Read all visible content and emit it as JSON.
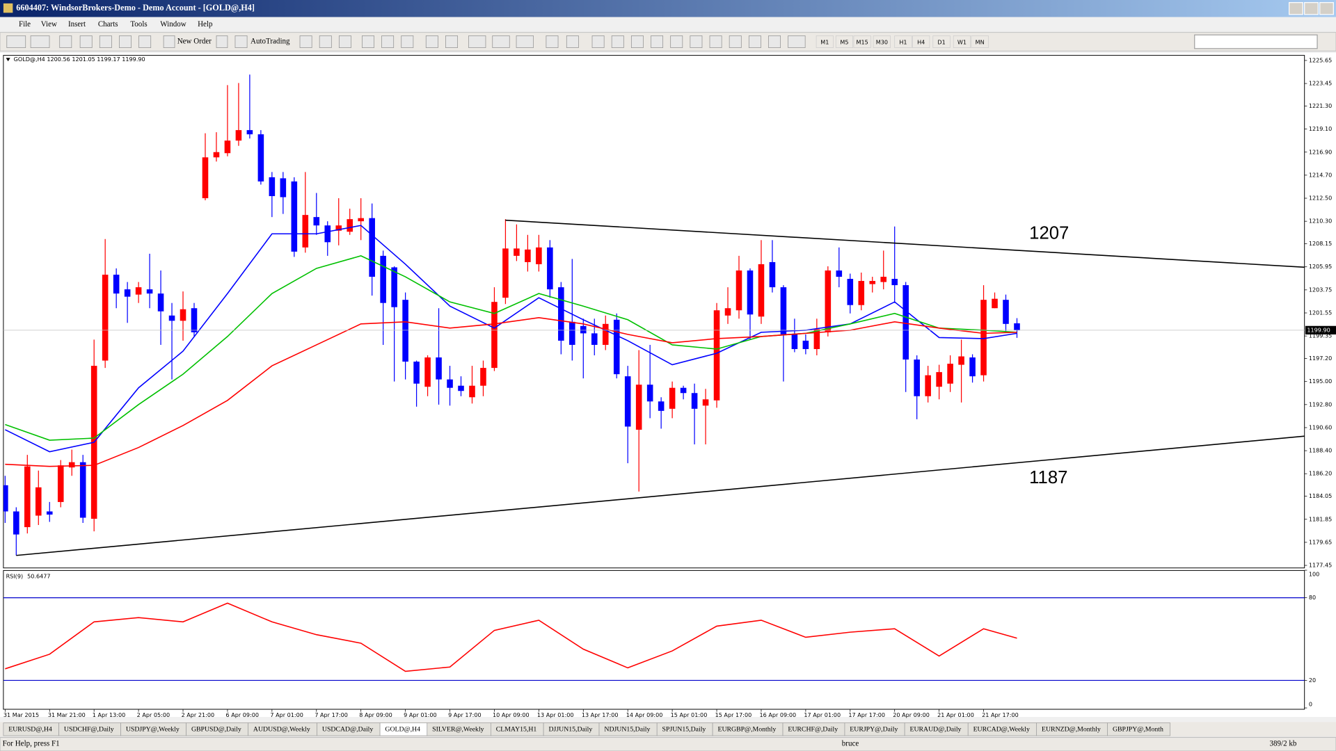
{
  "ui": {
    "title": "6604407: WindsorBrokers-Demo - Demo Account - [GOLD@,H4]",
    "menu": [
      "File",
      "View",
      "Insert",
      "Charts",
      "Tools",
      "Window",
      "Help"
    ],
    "toolbar": {
      "new_order": "New Order",
      "autotrading": "AutoTrading",
      "timeframes": [
        "M1",
        "M5",
        "M15",
        "M30",
        "H1",
        "H4",
        "D1",
        "W1",
        "MN"
      ]
    },
    "tabs": [
      "EURUSD@,H4",
      "USDCHF@,Daily",
      "USDJPY@,Weekly",
      "GBPUSD@,Daily",
      "AUDUSD@,Weekly",
      "USDCAD@,Daily",
      "GOLD@,H4",
      "SILVER@,Weekly",
      "CLMAY15,H1",
      "DJJUN15,Daily",
      "NDJUN15,Daily",
      "SPJUN15,Daily",
      "EURGBP@,Monthly",
      "EURCHF@,Daily",
      "EURJPY@,Daily",
      "EURAUD@,Daily",
      "EURCAD@,Weekly",
      "EURNZD@,Monthly",
      "GBPJPY@,Month"
    ],
    "status": {
      "help": "For Help, press F1",
      "user": "bruce",
      "traffic": "389/2 kb"
    }
  },
  "chart_data": [
    {
      "type": "candlestick",
      "header": "GOLD@,H4 1200.56 1201.05 1199.17 1199.90",
      "up_color": "#ff0000",
      "down_color": "#0000ff",
      "categories": [
        "31 Mar 2015",
        null,
        null,
        null,
        "31 Mar 21:00",
        null,
        null,
        null,
        "1 Apr 13:00",
        null,
        null,
        null,
        "2 Apr 05:00",
        null,
        null,
        null,
        "2 Apr 21:00",
        null,
        null,
        null,
        "6 Apr 09:00",
        null,
        null,
        null,
        "7 Apr 01:00",
        null,
        null,
        null,
        "7 Apr 17:00",
        null,
        null,
        null,
        "8 Apr 09:00",
        null,
        null,
        null,
        "9 Apr 01:00",
        null,
        null,
        null,
        "9 Apr 17:00",
        null,
        null,
        null,
        "10 Apr 09:00",
        null,
        null,
        null,
        "13 Apr 01:00",
        null,
        null,
        null,
        "13 Apr 17:00",
        null,
        null,
        null,
        "14 Apr 09:00",
        null,
        null,
        null,
        "15 Apr 01:00",
        null,
        null,
        null,
        "15 Apr 17:00",
        null,
        null,
        null,
        "16 Apr 09:00",
        null,
        null,
        null,
        "17 Apr 01:00",
        null,
        null,
        null,
        "17 Apr 17:00",
        null,
        null,
        null,
        "20 Apr 09:00",
        null,
        null,
        null,
        "21 Apr 01:00",
        null,
        null,
        null,
        "21 Apr 17:00",
        null,
        null,
        null
      ],
      "open": [
        1185.1,
        1182.6,
        1181.1,
        1182.2,
        1182.6,
        1183.5,
        1186.8,
        1187.3,
        1181.9,
        1197.0,
        1205.2,
        1203.8,
        1203.3,
        1203.8,
        1203.4,
        1201.3,
        1200.8,
        1202.0,
        1212.5,
        1216.4,
        1216.8,
        1218.0,
        1219.0,
        1218.6,
        1214.5,
        1214.4,
        1214.1,
        1207.8,
        1210.7,
        1209.9,
        1209.4,
        1209.3,
        1210.3,
        1210.6,
        1207.0,
        1205.9,
        1202.8,
        1196.9,
        1194.5,
        1197.3,
        1195.2,
        1194.6,
        1193.5,
        1194.6,
        1196.3,
        1203.0,
        1207.0,
        1206.4,
        1206.2,
        1207.8,
        1204.0,
        1200.7,
        1200.3,
        1199.6,
        1198.5,
        1200.9,
        1195.5,
        1190.4,
        1194.7,
        1193.1,
        1192.4,
        1194.4,
        1193.9,
        1192.7,
        1193.2,
        1201.3,
        1201.8,
        1205.6,
        1201.2,
        1206.4,
        1204.0,
        1199.5,
        1198.9,
        1198.1,
        1199.7,
        1205.6,
        1204.8,
        1202.3,
        1204.3,
        1204.5,
        1204.8,
        1204.2,
        1197.1,
        1193.6,
        1194.5,
        1194.8,
        1196.6,
        1197.3,
        1195.6,
        1202.0,
        1202.8,
        1200.56
      ],
      "high": [
        1186.0,
        1183.0,
        1188.0,
        1186.5,
        1183.5,
        1187.5,
        1188.5,
        1188.0,
        1199.0,
        1208.6,
        1205.8,
        1204.5,
        1204.5,
        1207.2,
        1205.6,
        1202.5,
        1203.6,
        1202.5,
        1218.7,
        1218.8,
        1223.3,
        1223.5,
        1224.3,
        1219.0,
        1215.0,
        1215.0,
        1214.5,
        1215.0,
        1213.0,
        1210.3,
        1212.5,
        1211.5,
        1212.5,
        1212.0,
        1207.5,
        1206.0,
        1203.5,
        1197.0,
        1197.5,
        1202.0,
        1196.5,
        1195.5,
        1196.5,
        1197.0,
        1204.0,
        1210.5,
        1210.0,
        1209.0,
        1209.0,
        1208.5,
        1204.5,
        1206.7,
        1201.0,
        1201.0,
        1201.3,
        1201.5,
        1196.5,
        1198.0,
        1198.5,
        1193.5,
        1195.0,
        1194.6,
        1194.8,
        1194.3,
        1202.5,
        1204.0,
        1207.0,
        1205.8,
        1208.5,
        1208.5,
        1204.2,
        1201.0,
        1199.5,
        1201.0,
        1206.0,
        1207.8,
        1205.3,
        1205.4,
        1205.0,
        1207.5,
        1209.8,
        1204.5,
        1197.5,
        1196.5,
        1196.6,
        1197.5,
        1199.0,
        1197.6,
        1204.2,
        1203.5,
        1203.3,
        1201.05
      ],
      "low": [
        1181.5,
        1178.4,
        1180.5,
        1181.3,
        1181.6,
        1183.0,
        1186.0,
        1181.5,
        1180.7,
        1196.3,
        1202.0,
        1200.6,
        1202.5,
        1202.0,
        1198.5,
        1195.2,
        1198.9,
        1199.3,
        1212.3,
        1216.0,
        1216.5,
        1217.5,
        1218.2,
        1213.8,
        1210.7,
        1211.0,
        1206.9,
        1207.3,
        1209.0,
        1207.0,
        1208.0,
        1209.0,
        1208.5,
        1203.2,
        1198.5,
        1195.0,
        1195.2,
        1192.6,
        1193.6,
        1192.8,
        1192.7,
        1193.6,
        1192.9,
        1193.6,
        1196.0,
        1202.4,
        1206.5,
        1205.5,
        1205.5,
        1203.0,
        1197.6,
        1197.0,
        1195.3,
        1197.5,
        1198.0,
        1195.3,
        1187.2,
        1184.5,
        1191.5,
        1190.5,
        1191.5,
        1193.3,
        1189.0,
        1189.0,
        1192.5,
        1200.5,
        1201.0,
        1199.0,
        1200.5,
        1203.5,
        1195.0,
        1197.8,
        1197.6,
        1197.5,
        1199.3,
        1204.0,
        1201.5,
        1201.8,
        1203.5,
        1203.8,
        1202.5,
        1194.0,
        1191.4,
        1193.0,
        1193.3,
        1194.0,
        1193.0,
        1194.9,
        1195.0,
        1202.0,
        1199.8,
        1199.17
      ],
      "close": [
        1182.6,
        1180.4,
        1186.9,
        1184.9,
        1182.3,
        1187.0,
        1187.3,
        1182.0,
        1196.5,
        1205.2,
        1203.4,
        1203.1,
        1204.0,
        1203.4,
        1201.7,
        1200.8,
        1201.9,
        1199.7,
        1216.4,
        1216.9,
        1218.0,
        1219.0,
        1218.6,
        1214.1,
        1212.7,
        1212.6,
        1207.4,
        1210.9,
        1209.9,
        1208.3,
        1209.9,
        1210.5,
        1210.6,
        1205.0,
        1202.5,
        1202.1,
        1196.9,
        1194.8,
        1197.3,
        1195.2,
        1194.4,
        1194.1,
        1194.6,
        1196.3,
        1202.6,
        1207.7,
        1207.7,
        1207.6,
        1207.8,
        1203.8,
        1198.9,
        1198.5,
        1199.6,
        1198.5,
        1200.5,
        1195.7,
        1190.7,
        1194.7,
        1193.1,
        1192.2,
        1194.4,
        1193.9,
        1192.4,
        1193.3,
        1201.8,
        1202.0,
        1205.6,
        1201.4,
        1206.2,
        1204.0,
        1199.5,
        1198.1,
        1198.1,
        1200.0,
        1205.6,
        1205.0,
        1202.3,
        1204.6,
        1204.6,
        1205.0,
        1204.2,
        1197.1,
        1193.6,
        1195.6,
        1195.9,
        1196.7,
        1197.4,
        1195.5,
        1202.8,
        1202.9,
        1200.5,
        1199.9
      ],
      "ma_series": [
        {
          "color": "#0000ff",
          "values": [
            1190.4,
            1188.3,
            1189.2,
            1194.4,
            1197.9,
            1203.4,
            1209.1,
            1209.1,
            1209.9,
            1206.2,
            1202.2,
            1200.1,
            1203.0,
            1200.9,
            1198.9,
            1196.6,
            1197.7,
            1199.7,
            1199.9,
            1200.5,
            1202.6,
            1199.2,
            1199.1,
            1199.6
          ]
        },
        {
          "color": "#00c000",
          "values": [
            1190.9,
            1189.4,
            1189.6,
            1192.8,
            1195.7,
            1199.3,
            1203.4,
            1205.8,
            1207.0,
            1205.0,
            1202.6,
            1201.5,
            1203.4,
            1202.2,
            1200.9,
            1198.5,
            1198.1,
            1199.3,
            1199.6,
            1200.5,
            1201.5,
            1200.1,
            1199.9,
            1199.7
          ]
        },
        {
          "color": "#ff0000",
          "values": [
            1187.1,
            1186.9,
            1187.0,
            1188.7,
            1190.8,
            1193.2,
            1196.5,
            1198.5,
            1200.5,
            1200.7,
            1200.1,
            1200.5,
            1201.1,
            1200.5,
            1199.5,
            1198.7,
            1199.1,
            1199.3,
            1199.6,
            1199.9,
            1200.7,
            1200.1,
            1199.6,
            1199.7
          ]
        }
      ],
      "trendlines": [
        {
          "color": "#000000",
          "x": [
            45,
            117
          ],
          "values": [
            1210.4,
            1205.9
          ]
        },
        {
          "color": "#000000",
          "x": [
            1,
            117
          ],
          "values": [
            1178.4,
            1189.8
          ]
        }
      ],
      "annotations": [
        "1207",
        "1187"
      ],
      "price_label": {
        "value": 1199.9,
        "label": "1199.90"
      },
      "ylim": [
        1177.45,
        1225.65
      ],
      "yticks": [
        1225.65,
        1223.45,
        {
          "value": 1221.3,
          "label": "1221.30"
        },
        {
          "value": 1219.1,
          "label": "1219.10"
        },
        {
          "value": 1216.9,
          "label": "1216.90"
        },
        {
          "value": 1214.7,
          "label": "1214.70"
        },
        {
          "value": 1212.5,
          "label": "1212.50"
        },
        {
          "value": 1210.3,
          "label": "1210.30"
        },
        1208.15,
        1205.95,
        1203.75,
        1201.55,
        1199.35,
        {
          "value": 1197.2,
          "label": "1197.20"
        },
        {
          "value": 1195,
          "label": "1195.00"
        },
        {
          "value": 1192.8,
          "label": "1192.80"
        },
        {
          "value": 1190.6,
          "label": "1190.60"
        },
        {
          "value": 1188.4,
          "label": "1188.40"
        },
        {
          "value": 1186.2,
          "label": "1186.20"
        },
        1184.05,
        1181.85,
        1179.65,
        1177.45
      ]
    },
    {
      "type": "line",
      "title": "RSI(9)",
      "series": [
        {
          "color": "#ff0000",
          "values": [
            28.4,
            39.0,
            62.5,
            65.6,
            62.5,
            76.1,
            62.5,
            53.2,
            47.0,
            26.6,
            29.7,
            56.3,
            63.7,
            42.7,
            29.1,
            41.4,
            59.4,
            63.7,
            51.3,
            55.0,
            57.5,
            37.7,
            57.5,
            50.6477
          ]
        }
      ],
      "levels": [
        20,
        80
      ],
      "level_color": "#0000cc",
      "ylim": [
        0,
        100
      ],
      "yticks": [
        0,
        20,
        80,
        100
      ]
    }
  ]
}
